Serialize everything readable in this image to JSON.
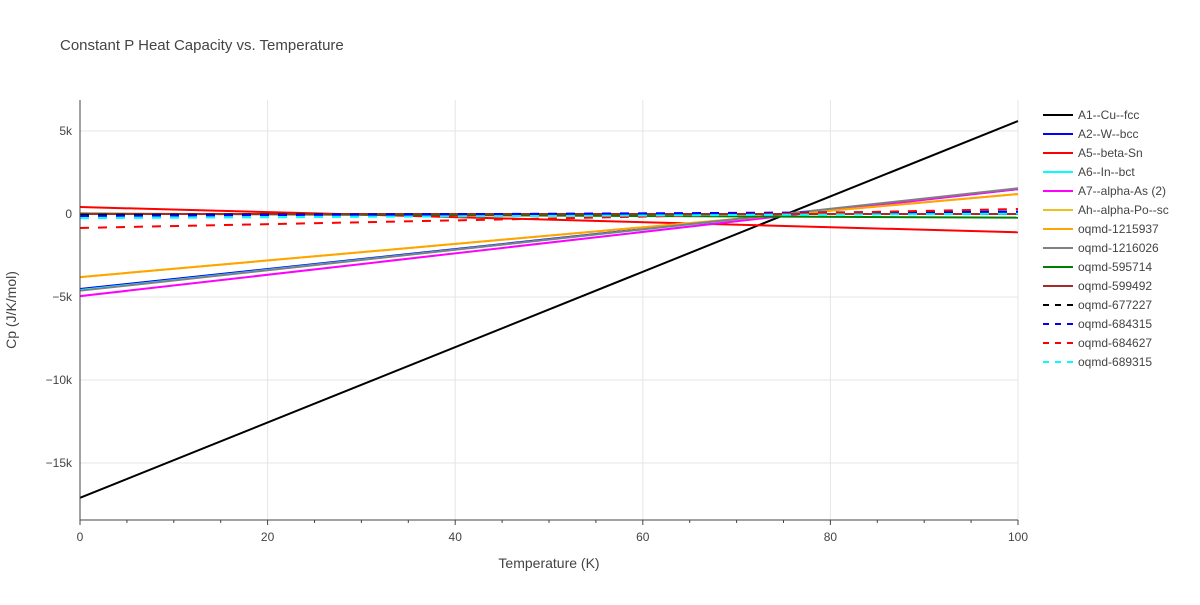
{
  "chart_data": {
    "type": "line",
    "title": "Constant P Heat Capacity vs. Temperature",
    "xlabel": "Temperature (K)",
    "ylabel": "Cp (J/K/mol)",
    "xlim": [
      0,
      100
    ],
    "ylim": [
      -18500,
      6900
    ],
    "xticks": [
      0,
      20,
      40,
      60,
      80,
      100
    ],
    "xtick_labels": [
      "0",
      "20",
      "40",
      "60",
      "80",
      "100"
    ],
    "yticks": [
      5000,
      0,
      -5000,
      -10000,
      -15000
    ],
    "ytick_labels": [
      "5k",
      "0",
      "−5k",
      "−10k",
      "−15k"
    ],
    "grid": true,
    "legend_placement": "right",
    "series": [
      {
        "name": "A1--Cu--fcc",
        "color": "#000000",
        "dash": false,
        "x": [
          0,
          100
        ],
        "y": [
          -17100,
          5600
        ]
      },
      {
        "name": "A2--W--bcc",
        "color": "#0000ff",
        "dash": false,
        "x": [
          0,
          100
        ],
        "y": [
          -4520,
          1500
        ]
      },
      {
        "name": "A5--beta-Sn",
        "color": "#ff0000",
        "dash": false,
        "x": [
          0,
          100
        ],
        "y": [
          420,
          -1100
        ]
      },
      {
        "name": "A6--In--bct",
        "color": "#00ffff",
        "dash": false,
        "x": [
          0,
          100
        ],
        "y": [
          -4580,
          1500
        ]
      },
      {
        "name": "A7--alpha-As (2)",
        "color": "#ff00ff",
        "dash": false,
        "x": [
          0,
          100
        ],
        "y": [
          -4950,
          1500
        ]
      },
      {
        "name": "Ah--alpha-Po--sc",
        "color": "#f0c020",
        "dash": false,
        "x": [
          0,
          100
        ],
        "y": [
          -3800,
          1200
        ]
      },
      {
        "name": "oqmd-1215937",
        "color": "#ffa500",
        "dash": false,
        "x": [
          0,
          100
        ],
        "y": [
          -3800,
          1200
        ]
      },
      {
        "name": "oqmd-1216026",
        "color": "#808080",
        "dash": false,
        "x": [
          0,
          100
        ],
        "y": [
          -4620,
          1550
        ]
      },
      {
        "name": "oqmd-595714",
        "color": "#008000",
        "dash": false,
        "x": [
          0,
          100
        ],
        "y": [
          30,
          -220
        ]
      },
      {
        "name": "oqmd-599492",
        "color": "#a52a2a",
        "dash": false,
        "x": [
          0,
          100
        ],
        "y": [
          0,
          0
        ]
      },
      {
        "name": "oqmd-677227",
        "color": "#000000",
        "dash": true,
        "x": [
          0,
          100
        ],
        "y": [
          -50,
          50
        ]
      },
      {
        "name": "oqmd-684315",
        "color": "#0000ff",
        "dash": true,
        "x": [
          0,
          100
        ],
        "y": [
          -120,
          150
        ]
      },
      {
        "name": "oqmd-684627",
        "color": "#ff0000",
        "dash": true,
        "x": [
          0,
          100
        ],
        "y": [
          -840,
          300
        ]
      },
      {
        "name": "oqmd-689315",
        "color": "#00ffff",
        "dash": true,
        "x": [
          0,
          100
        ],
        "y": [
          -250,
          20
        ]
      }
    ]
  }
}
